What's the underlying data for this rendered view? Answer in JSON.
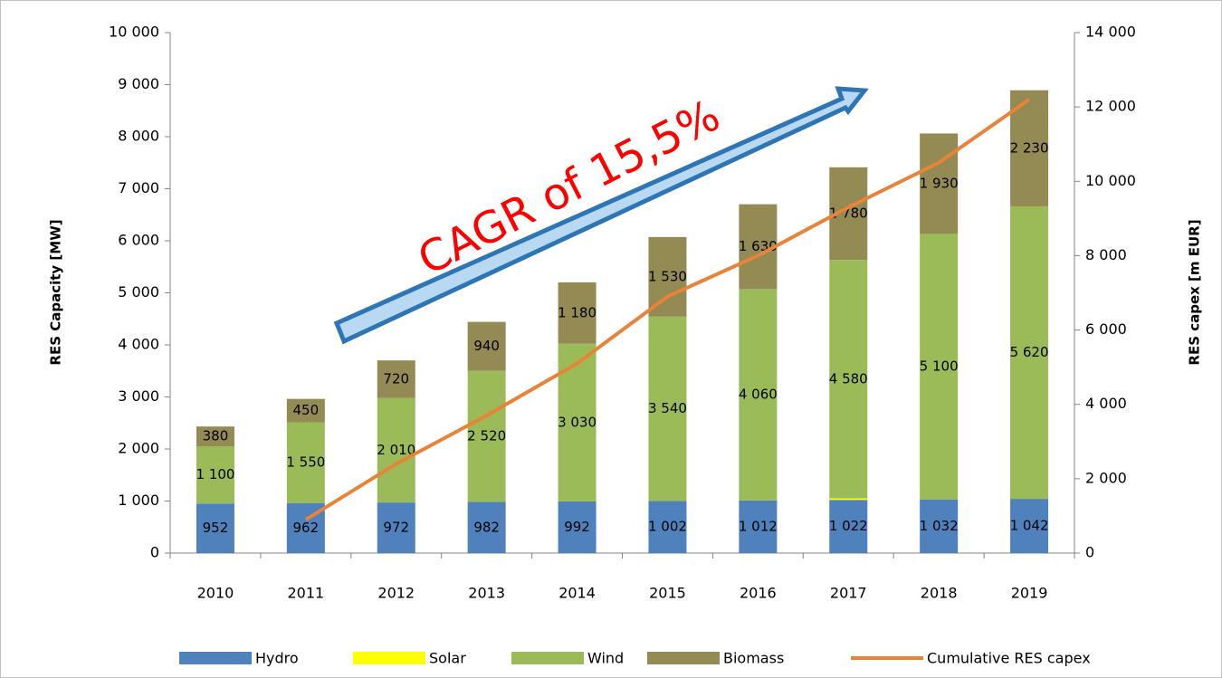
{
  "chart_data": {
    "type": "bar",
    "stacked": true,
    "annotation": "CAGR of 15,5%",
    "ylabel": "RES Capacity  [MW]",
    "y2label": "RES capex [m EUR]",
    "categories": [
      "2010",
      "2011",
      "2012",
      "2013",
      "2014",
      "2015",
      "2016",
      "2017",
      "2018",
      "2019"
    ],
    "series": [
      {
        "name": "Hydro",
        "color": "#4f81bd",
        "values": [
          952,
          962,
          972,
          982,
          992,
          1002,
          1012,
          1022,
          1032,
          1042
        ],
        "value_labels": [
          "952",
          "962",
          "972",
          "982",
          "992",
          "1 002",
          "1 012",
          "1 022",
          "1 032",
          "1 042"
        ]
      },
      {
        "name": "Solar",
        "color": "#ffff00",
        "values": [
          0,
          0,
          0,
          0,
          0,
          0,
          0,
          30,
          0,
          0
        ]
      },
      {
        "name": "Wind",
        "color": "#9bbb59",
        "values": [
          1100,
          1550,
          2010,
          2520,
          3030,
          3540,
          4060,
          4580,
          5100,
          5620
        ],
        "value_labels": [
          "1 100",
          "1 550",
          "2 010",
          "2 520",
          "3 030",
          "3 540",
          "4 060",
          "4 580",
          "5 100",
          "5 620"
        ]
      },
      {
        "name": "Biomass",
        "color": "#948a54",
        "values": [
          380,
          450,
          720,
          940,
          1180,
          1530,
          1630,
          1780,
          1930,
          2230
        ],
        "value_labels": [
          "380",
          "450",
          "720",
          "940",
          "1 180",
          "1 530",
          "1 630",
          "1 780",
          "1 930",
          "2 230"
        ]
      },
      {
        "name": "Cumulative RES capex",
        "type": "line",
        "axis": "y2",
        "color": "#e8833a",
        "values": [
          null,
          900,
          2400,
          3700,
          5100,
          6900,
          8000,
          9300,
          10500,
          12200
        ]
      }
    ],
    "ylim": [
      0,
      10000
    ],
    "yticks": [
      0,
      {
        "value": 1000,
        "label": "1 000"
      },
      {
        "value": 2000,
        "label": "2 000"
      },
      {
        "value": 3000,
        "label": "3 000"
      },
      {
        "value": 4000,
        "label": "4 000"
      },
      {
        "value": 5000,
        "label": "5 000"
      },
      {
        "value": 6000,
        "label": "6 000"
      },
      {
        "value": 7000,
        "label": "7 000"
      },
      {
        "value": 8000,
        "label": "8 000"
      },
      {
        "value": 9000,
        "label": "9 000"
      },
      {
        "value": 10000,
        "label": "10 000"
      }
    ],
    "y2lim": [
      0,
      14000
    ],
    "y2ticks": [
      0,
      {
        "value": 2000,
        "label": "2 000"
      },
      {
        "value": 4000,
        "label": "4 000"
      },
      {
        "value": 6000,
        "label": "6 000"
      },
      {
        "value": 8000,
        "label": "8 000"
      },
      {
        "value": 10000,
        "label": "10 000"
      },
      {
        "value": 12000,
        "label": "12 000"
      },
      {
        "value": 14000,
        "label": "14 000"
      }
    ],
    "legend": "bottom"
  }
}
